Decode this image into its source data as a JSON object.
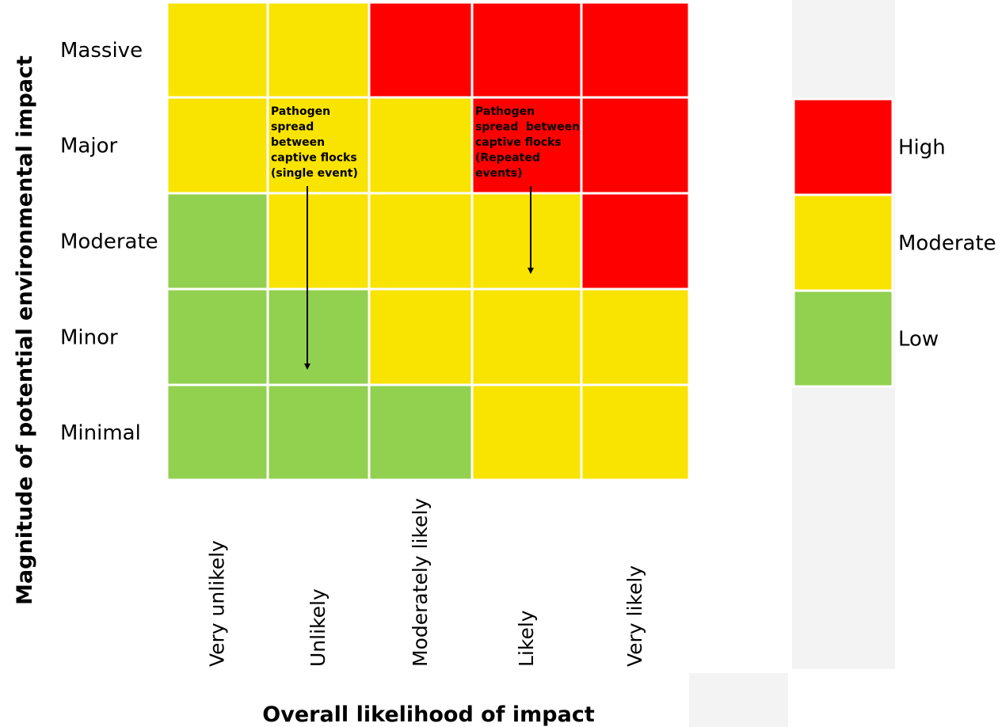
{
  "chart_data": {
    "type": "heatmap",
    "title": "",
    "xlabel": "Overall likelihood of impact",
    "ylabel": "Magnitude of potential environmental impact",
    "columns": [
      "Very unlikely",
      "Unlikely",
      "Moderately likely",
      "Likely",
      "Very likely"
    ],
    "rows": [
      "Massive",
      "Major",
      "Moderate",
      "Minor",
      "Minimal"
    ],
    "cells": [
      [
        "Moderate",
        "Moderate",
        "High",
        "High",
        "High"
      ],
      [
        "Moderate",
        "Moderate",
        "Moderate",
        "High",
        "High"
      ],
      [
        "Low",
        "Moderate",
        "Moderate",
        "Moderate",
        "High"
      ],
      [
        "Low",
        "Low",
        "Moderate",
        "Moderate",
        "Moderate"
      ],
      [
        "Low",
        "Low",
        "Low",
        "Moderate",
        "Moderate"
      ]
    ],
    "legend": [
      {
        "label": "High",
        "color": "#ff0000"
      },
      {
        "label": "Moderate",
        "color": "#f9e300"
      },
      {
        "label": "Low",
        "color": "#92d050"
      }
    ],
    "legend_position": "right",
    "annotations": [
      {
        "lines": [
          "Pathogen",
          "spread",
          "between",
          "captive flocks",
          "(single event)"
        ],
        "from": {
          "row": "Major",
          "column": "Unlikely"
        },
        "to": {
          "row": "Minor",
          "column": "Unlikely"
        }
      },
      {
        "lines": [
          "Pathogen",
          "spread  between",
          "captive flocks",
          "(Repeated",
          "events)"
        ],
        "from": {
          "row": "Major",
          "column": "Likely"
        },
        "to": {
          "row": "Moderate",
          "column": "Likely"
        }
      }
    ]
  }
}
